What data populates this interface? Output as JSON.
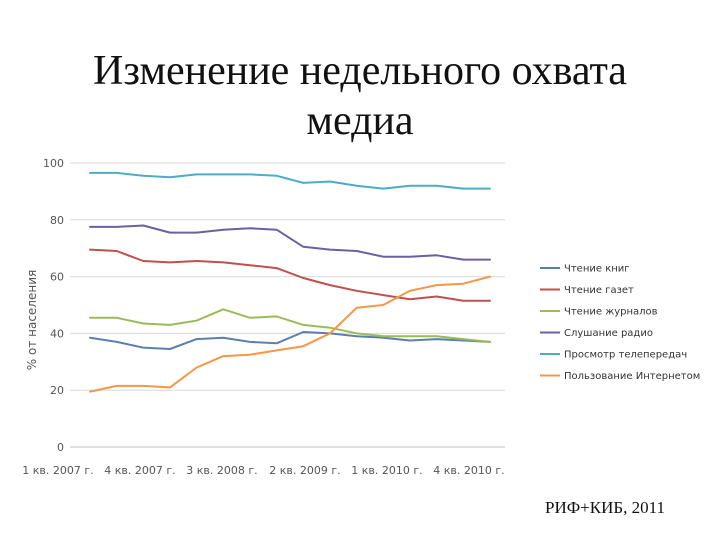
{
  "slide": {
    "title_line1": "Изменение недельного охвата",
    "title_line2": "медиа",
    "footer": "РИФ+КИБ, 2011"
  },
  "chart_data": {
    "type": "line",
    "title": "Изменение недельного охвата медиа",
    "ylabel": "% от населения",
    "xlabel": "",
    "ylim": [
      0,
      100
    ],
    "yticks": [
      0,
      20,
      40,
      60,
      80,
      100
    ],
    "grid": true,
    "legend": "right",
    "x_tick_labels": [
      "1 кв. 2007 г.",
      "4 кв. 2007 г.",
      "3 кв. 2008 г.",
      "2 кв. 2009 г.",
      "1 кв. 2010 г.",
      "4 кв. 2010 г."
    ],
    "series": [
      {
        "name": "Чтение книг",
        "color": "#5b7fb0",
        "values": [
          38.5,
          37,
          35,
          34.5,
          38,
          38.5,
          37,
          36.5,
          40.5,
          40,
          39,
          38.5,
          37.5,
          38,
          37.5,
          37
        ]
      },
      {
        "name": "Чтение газет",
        "color": "#c0504d",
        "values": [
          69.5,
          69,
          65.5,
          65,
          65.5,
          65,
          64,
          63,
          59.5,
          57,
          55,
          53.5,
          52,
          53,
          51.5,
          51.5
        ]
      },
      {
        "name": "Чтение журналов",
        "color": "#9bbb59",
        "values": [
          45.5,
          45.5,
          43.5,
          43,
          44.5,
          48.5,
          45.5,
          46,
          43,
          42,
          40,
          39,
          39,
          39,
          38,
          37
        ]
      },
      {
        "name": "Слушание радио",
        "color": "#6d5fa0",
        "values": [
          77.5,
          77.5,
          78,
          75.5,
          75.5,
          76.5,
          77,
          76.5,
          70.5,
          69.5,
          69,
          67,
          67,
          67.5,
          66,
          66
        ]
      },
      {
        "name": "Просмотр телепередач",
        "color": "#4bacc6",
        "values": [
          96.5,
          96.5,
          95.5,
          95,
          96,
          96,
          96,
          95.5,
          93,
          93.5,
          92,
          91,
          92,
          92,
          91,
          91
        ]
      },
      {
        "name": "Пользование Интернетом",
        "color": "#f79646",
        "values": [
          19.5,
          21.5,
          21.5,
          21,
          28,
          32,
          32.5,
          34,
          35.5,
          40,
          49,
          50,
          55,
          57,
          57.5,
          60
        ]
      }
    ]
  }
}
